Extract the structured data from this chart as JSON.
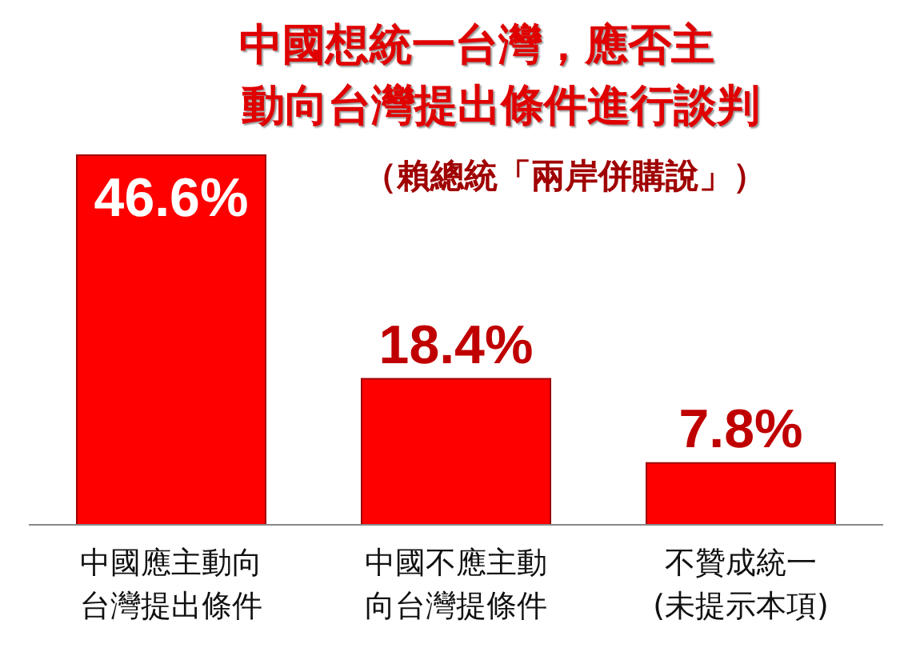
{
  "chart_data": {
    "type": "bar",
    "title": "中國想統一台灣，應否主動向台灣提出條件進行談判",
    "subtitle": "（賴總統「兩岸併購說」）",
    "categories": [
      "中國應主動向台灣提出條件",
      "中國不應主動向台灣提條件",
      "不贊成統一(未提示本項)"
    ],
    "values": [
      46.6,
      18.4,
      7.8
    ],
    "value_labels": [
      "46.6%",
      "18.4%",
      "7.8%"
    ],
    "color": "#ff0000"
  }
}
